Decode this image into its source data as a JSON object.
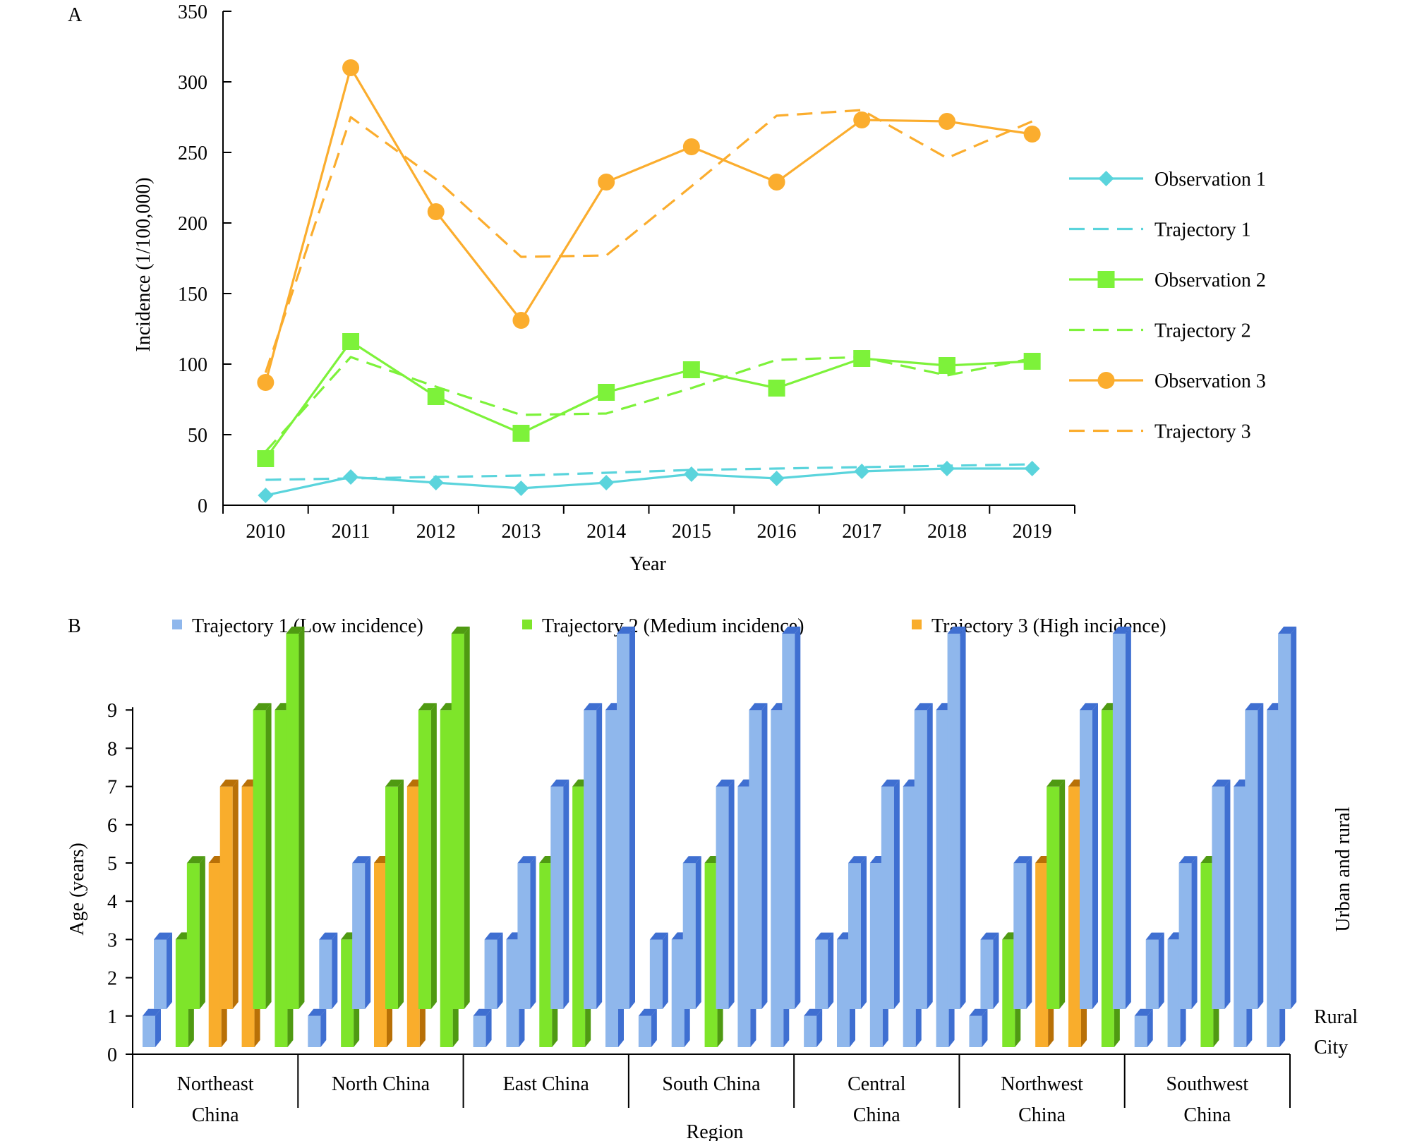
{
  "colors": {
    "series1": "#5ad4dc",
    "series2": "#7df23a",
    "series3": "#fbad2e",
    "bar_blue": "#8fb7ec",
    "bar_blue_side": "#3f6fd1",
    "bar_green": "#7ee52a",
    "bar_green_side": "#4f9a12",
    "bar_orange": "#f9ad2c",
    "bar_orange_side": "#b87007",
    "axis": "#000000"
  },
  "chart_data": [
    {
      "panel": "A",
      "type": "line",
      "xlabel": "Year",
      "ylabel": "Incidence (1/100,000)",
      "ylim": [
        0,
        350
      ],
      "yticks": [
        "0",
        "50",
        "100",
        "150",
        "200",
        "250",
        "300",
        "350"
      ],
      "x": [
        "2010",
        "2011",
        "2012",
        "2013",
        "2014",
        "2015",
        "2016",
        "2017",
        "2018",
        "2019"
      ],
      "grid": false,
      "legend_position": "right",
      "series": [
        {
          "name": "Observation 1",
          "style": "solid",
          "marker": "diamond",
          "color": "#5ad4dc",
          "values": [
            7,
            20,
            16,
            12,
            16,
            22,
            19,
            24,
            26,
            26
          ]
        },
        {
          "name": "Trajectory 1",
          "style": "dashed",
          "marker": "none",
          "color": "#5ad4dc",
          "values": [
            18,
            19,
            20,
            21,
            23,
            25,
            26,
            27,
            28,
            29
          ]
        },
        {
          "name": "Observation 2",
          "style": "solid",
          "marker": "square",
          "color": "#7df23a",
          "values": [
            33,
            116,
            77,
            51,
            80,
            96,
            83,
            104,
            99,
            102
          ]
        },
        {
          "name": "Trajectory 2",
          "style": "dashed",
          "marker": "none",
          "color": "#7df23a",
          "values": [
            38,
            105,
            84,
            64,
            65,
            83,
            103,
            105,
            92,
            104
          ]
        },
        {
          "name": "Observation 3",
          "style": "solid",
          "marker": "circle",
          "color": "#fbad2e",
          "values": [
            87,
            310,
            208,
            131,
            229,
            254,
            229,
            273,
            272,
            263
          ]
        },
        {
          "name": "Trajectory 3",
          "style": "dashed",
          "marker": "none",
          "color": "#fbad2e",
          "values": [
            94,
            275,
            231,
            176,
            177,
            226,
            276,
            280,
            246,
            272
          ]
        }
      ]
    },
    {
      "panel": "B",
      "type": "bar",
      "subtype": "3d-column",
      "xlabel": "Region",
      "ylabel": "Age (years)",
      "ylim": [
        0,
        9
      ],
      "yticks": [
        "0",
        "1",
        "2",
        "3",
        "4",
        "5",
        "6",
        "7",
        "8",
        "9"
      ],
      "depth_labels": [
        "City",
        "Rural",
        "Urban and rural"
      ],
      "legend_position": "top",
      "legend": [
        {
          "name": "Trajectory 1 (Low incidence)",
          "key": "1"
        },
        {
          "name": "Trajectory 2 (Medium incidence)",
          "key": "2"
        },
        {
          "name": "Trajectory 3 (High incidence)",
          "key": "3"
        }
      ],
      "categories": [
        {
          "label": [
            "Northeast",
            "China"
          ],
          "groups": [
            {
              "ages": [
                1,
                3,
                5,
                7,
                9
              ],
              "city": [
                1,
                2,
                3,
                3,
                2
              ],
              "rural": [
                1,
                2,
                3,
                2,
                2
              ],
              "urban_rural": [
                1,
                2,
                2,
                2,
                1
              ]
            }
          ]
        },
        {
          "label": [
            "North China"
          ],
          "groups": [
            {
              "ages": [
                1,
                3,
                5,
                7,
                9
              ],
              "city": [
                1,
                2,
                3,
                3,
                2
              ],
              "rural": [
                1,
                1,
                2,
                2,
                2
              ],
              "urban_rural": [
                1,
                1,
                1,
                1,
                1
              ]
            }
          ]
        },
        {
          "label": [
            "East China"
          ],
          "groups": [
            {
              "ages": [
                1,
                3,
                5,
                7,
                9
              ],
              "city": [
                1,
                1,
                2,
                2,
                1
              ],
              "rural": [
                1,
                1,
                1,
                1,
                1
              ],
              "urban_rural": [
                1,
                1,
                1,
                1,
                1
              ]
            }
          ]
        },
        {
          "label": [
            "South China"
          ],
          "groups": [
            {
              "ages": [
                1,
                3,
                5,
                7,
                9
              ],
              "city": [
                1,
                1,
                2,
                1,
                1
              ],
              "rural": [
                1,
                1,
                1,
                1,
                1
              ],
              "urban_rural": [
                1,
                1,
                1,
                1,
                1
              ]
            }
          ]
        },
        {
          "label": [
            "Central",
            "China"
          ],
          "groups": [
            {
              "ages": [
                1,
                3,
                5,
                7,
                9
              ],
              "city": [
                1,
                1,
                1,
                1,
                1
              ],
              "rural": [
                1,
                1,
                1,
                1,
                1
              ],
              "urban_rural": [
                1,
                1,
                1,
                1,
                1
              ]
            }
          ]
        },
        {
          "label": [
            "Northwest",
            "China"
          ],
          "groups": [
            {
              "ages": [
                1,
                3,
                5,
                7,
                9
              ],
              "city": [
                1,
                2,
                3,
                3,
                2
              ],
              "rural": [
                1,
                1,
                2,
                1,
                1
              ],
              "urban_rural": [
                1,
                1,
                1,
                1,
                1
              ]
            }
          ]
        },
        {
          "label": [
            "Southwest",
            "China"
          ],
          "groups": [
            {
              "ages": [
                1,
                3,
                5,
                7,
                9
              ],
              "city": [
                1,
                1,
                2,
                1,
                1
              ],
              "rural": [
                1,
                1,
                1,
                1,
                1
              ],
              "urban_rural": [
                1,
                1,
                1,
                1,
                1
              ]
            }
          ]
        }
      ]
    }
  ],
  "panels": {
    "a_label": "A",
    "b_label": "B"
  }
}
